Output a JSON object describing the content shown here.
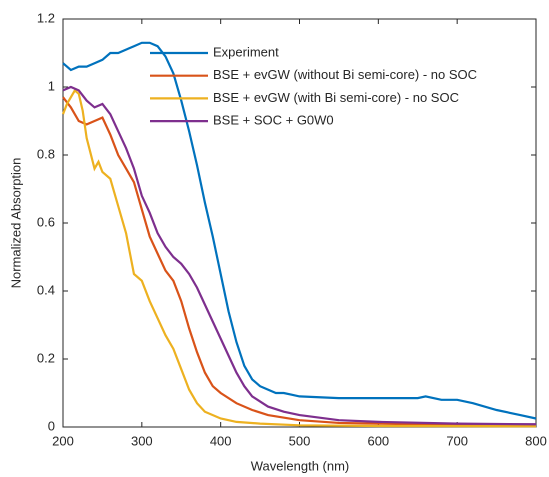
{
  "chart_data": {
    "type": "line",
    "x_label": "Wavelength (nm)",
    "y_label": "Normalized Absorption",
    "xlim": [
      200,
      800
    ],
    "xticks": [
      200,
      300,
      400,
      500,
      600,
      700,
      800
    ],
    "ylim": [
      0,
      1.2
    ],
    "yticks": [
      0,
      0.2,
      0.4,
      0.6,
      0.8,
      1,
      1.2
    ],
    "grid": false,
    "legend": "top-right",
    "series": [
      {
        "name": "Experiment",
        "color": "#0072BD",
        "x": [
          200,
          210,
          220,
          230,
          240,
          250,
          260,
          270,
          280,
          290,
          300,
          310,
          320,
          330,
          340,
          350,
          360,
          370,
          380,
          390,
          400,
          410,
          420,
          430,
          440,
          450,
          460,
          470,
          480,
          490,
          500,
          550,
          600,
          650,
          660,
          680,
          700,
          720,
          750,
          780,
          800
        ],
        "values": [
          1.07,
          1.05,
          1.06,
          1.06,
          1.07,
          1.08,
          1.1,
          1.1,
          1.11,
          1.12,
          1.13,
          1.13,
          1.12,
          1.09,
          1.04,
          0.96,
          0.87,
          0.77,
          0.66,
          0.56,
          0.45,
          0.34,
          0.25,
          0.18,
          0.14,
          0.12,
          0.11,
          0.1,
          0.1,
          0.095,
          0.09,
          0.085,
          0.085,
          0.085,
          0.09,
          0.08,
          0.08,
          0.07,
          0.05,
          0.035,
          0.025
        ]
      },
      {
        "name": "BSE + evGW (without Bi semi-core) - no SOC",
        "color": "#D95319",
        "x": [
          200,
          210,
          220,
          230,
          240,
          250,
          260,
          270,
          280,
          290,
          300,
          310,
          320,
          330,
          340,
          350,
          360,
          370,
          380,
          390,
          400,
          420,
          440,
          460,
          500,
          550,
          600,
          700,
          800
        ],
        "values": [
          0.97,
          0.94,
          0.9,
          0.89,
          0.9,
          0.91,
          0.86,
          0.8,
          0.76,
          0.72,
          0.64,
          0.56,
          0.51,
          0.46,
          0.43,
          0.37,
          0.29,
          0.22,
          0.16,
          0.12,
          0.1,
          0.07,
          0.05,
          0.035,
          0.02,
          0.012,
          0.01,
          0.006,
          0.005
        ]
      },
      {
        "name": "BSE + evGW (with Bi semi-core) - no SOC",
        "color": "#EDB120",
        "x": [
          200,
          205,
          210,
          215,
          220,
          225,
          230,
          240,
          245,
          250,
          260,
          270,
          280,
          290,
          300,
          310,
          320,
          330,
          340,
          350,
          360,
          370,
          380,
          400,
          420,
          450,
          500,
          600,
          800
        ],
        "values": [
          0.92,
          0.95,
          0.97,
          0.99,
          0.98,
          0.93,
          0.85,
          0.76,
          0.78,
          0.75,
          0.73,
          0.65,
          0.57,
          0.45,
          0.43,
          0.37,
          0.32,
          0.27,
          0.23,
          0.17,
          0.11,
          0.07,
          0.045,
          0.025,
          0.015,
          0.01,
          0.005,
          0.003,
          0.002
        ]
      },
      {
        "name": "BSE + SOC + G0W0",
        "color": "#7E2F8E",
        "x": [
          200,
          210,
          220,
          230,
          240,
          250,
          260,
          270,
          280,
          290,
          300,
          310,
          320,
          330,
          340,
          350,
          360,
          370,
          380,
          390,
          400,
          410,
          420,
          430,
          440,
          460,
          480,
          500,
          550,
          600,
          700,
          800
        ],
        "values": [
          0.99,
          1.0,
          0.99,
          0.96,
          0.94,
          0.95,
          0.92,
          0.87,
          0.82,
          0.76,
          0.68,
          0.63,
          0.57,
          0.53,
          0.5,
          0.48,
          0.45,
          0.41,
          0.36,
          0.31,
          0.26,
          0.21,
          0.16,
          0.12,
          0.09,
          0.06,
          0.045,
          0.035,
          0.02,
          0.015,
          0.01,
          0.008
        ]
      }
    ]
  }
}
